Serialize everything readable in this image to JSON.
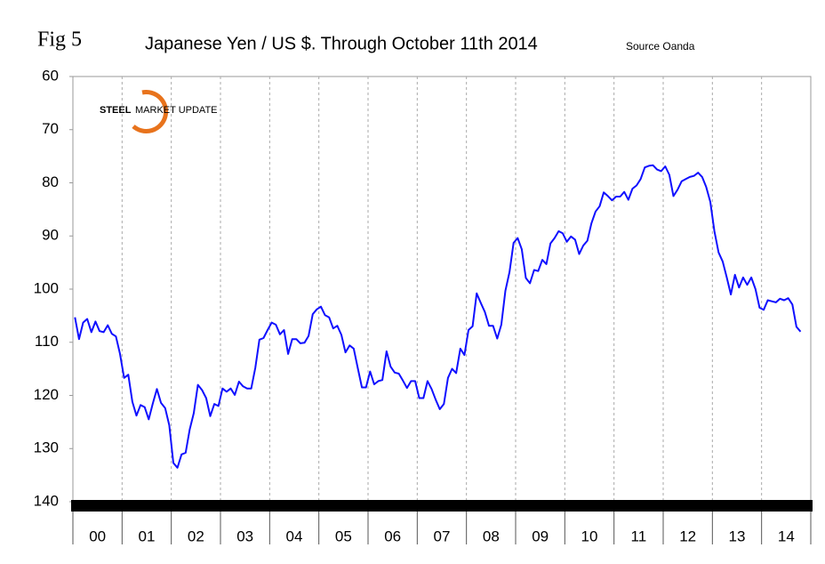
{
  "chart_data": {
    "type": "line",
    "fig_label": "Fig 5",
    "title": "Japanese Yen / US $. Through October 11th 2014",
    "source": "Source Oanda",
    "logo": [
      "STEEL",
      "MARKET UPDATE"
    ],
    "color": "#1010ff",
    "ylim": [
      60,
      140
    ],
    "y_inverted": true,
    "yticks": [
      60,
      70,
      80,
      90,
      100,
      110,
      120,
      130,
      140
    ],
    "xgrid": true,
    "categories": [
      null,
      null,
      null,
      null,
      null,
      null,
      "00",
      null,
      null,
      null,
      null,
      null,
      null,
      null,
      null,
      null,
      null,
      null,
      "01",
      null,
      null,
      null,
      null,
      null,
      null,
      null,
      null,
      null,
      null,
      null,
      "02",
      null,
      null,
      null,
      null,
      null,
      null,
      null,
      null,
      null,
      null,
      null,
      "03",
      null,
      null,
      null,
      null,
      null,
      null,
      null,
      null,
      null,
      null,
      null,
      "04",
      null,
      null,
      null,
      null,
      null,
      null,
      null,
      null,
      null,
      null,
      null,
      "05",
      null,
      null,
      null,
      null,
      null,
      null,
      null,
      null,
      null,
      null,
      null,
      "06",
      null,
      null,
      null,
      null,
      null,
      null,
      null,
      null,
      null,
      null,
      null,
      "07",
      null,
      null,
      null,
      null,
      null,
      null,
      null,
      null,
      null,
      null,
      null,
      "08",
      null,
      null,
      null,
      null,
      null,
      null,
      null,
      null,
      null,
      null,
      null,
      "09",
      null,
      null,
      null,
      null,
      null,
      null,
      null,
      null,
      null,
      null,
      null,
      "10",
      null,
      null,
      null,
      null,
      null,
      null,
      null,
      null,
      null,
      null,
      null,
      "11",
      null,
      null,
      null,
      null,
      null,
      null,
      null,
      null,
      null,
      null,
      null,
      "12",
      null,
      null,
      null,
      null,
      null,
      null,
      null,
      null,
      null,
      null,
      null,
      "13",
      null,
      null,
      null,
      null,
      null,
      null,
      null,
      null,
      null,
      null,
      null,
      "14",
      null,
      null,
      null
    ],
    "values": [
      105.3,
      109.4,
      106.3,
      105.6,
      108.1,
      106.1,
      107.9,
      108.1,
      106.8,
      108.4,
      108.9,
      112.2,
      116.7,
      116.1,
      121.2,
      123.8,
      121.8,
      122.2,
      124.5,
      121.5,
      118.8,
      121.4,
      122.4,
      125.6,
      132.7,
      133.6,
      131.1,
      130.8,
      126.4,
      123.3,
      118.0,
      119.0,
      120.5,
      123.9,
      121.6,
      122.0,
      118.7,
      119.3,
      118.7,
      119.9,
      117.4,
      118.3,
      118.7,
      118.7,
      114.8,
      109.5,
      109.2,
      107.7,
      106.3,
      106.7,
      108.5,
      107.7,
      112.2,
      109.4,
      109.4,
      110.2,
      110.1,
      108.8,
      104.7,
      103.8,
      103.3,
      104.9,
      105.3,
      107.4,
      106.9,
      108.6,
      111.9,
      110.6,
      111.2,
      114.9,
      118.5,
      118.5,
      115.5,
      117.9,
      117.3,
      117.1,
      111.7,
      114.6,
      115.7,
      115.9,
      117.2,
      118.6,
      117.3,
      117.3,
      120.5,
      120.5,
      117.3,
      118.8,
      120.8,
      122.6,
      121.6,
      116.7,
      115.0,
      115.8,
      111.2,
      112.4,
      107.7,
      107.0,
      100.8,
      102.6,
      104.3,
      106.9,
      106.9,
      109.3,
      106.7,
      100.3,
      96.8,
      91.3,
      90.4,
      92.5,
      97.9,
      98.9,
      96.4,
      96.6,
      94.5,
      95.3,
      91.4,
      90.4,
      89.1,
      89.5,
      91.1,
      90.1,
      90.7,
      93.4,
      91.8,
      90.9,
      87.6,
      85.4,
      84.4,
      81.8,
      82.5,
      83.3,
      82.6,
      82.6,
      81.7,
      83.2,
      81.1,
      80.5,
      79.3,
      77.1,
      76.8,
      76.7,
      77.5,
      77.8,
      76.9,
      78.5,
      82.5,
      81.3,
      79.7,
      79.3,
      78.9,
      78.7,
      78.1,
      78.9,
      80.8,
      83.6,
      89.1,
      93.1,
      94.8,
      97.8,
      101.0,
      97.3,
      99.7,
      97.8,
      99.2,
      97.8,
      100.0,
      103.5,
      103.9,
      102.1,
      102.3,
      102.5,
      101.8,
      102.1,
      101.7,
      102.9,
      107.1,
      108.0
    ]
  }
}
